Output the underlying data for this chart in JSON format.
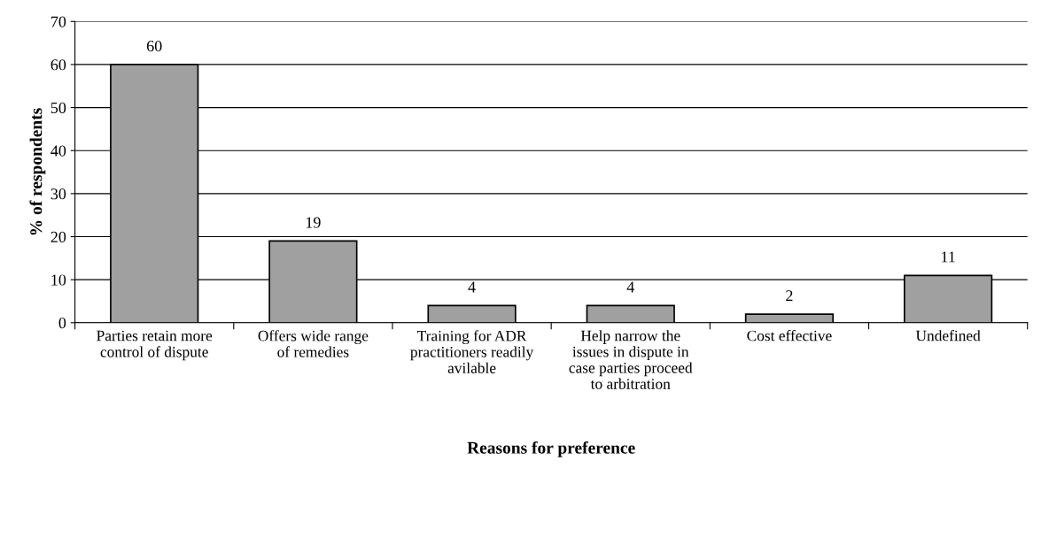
{
  "chart_data": {
    "type": "bar",
    "categories": [
      "Parties retain more\ncontrol of dispute",
      "Offers wide range\nof remedies",
      "Training for ADR\npractitioners readily\navilable",
      "Help narrow the\nissues in dispute in\ncase parties proceed\nto arbitration",
      "Cost effective",
      "Undefined"
    ],
    "values": [
      60,
      19,
      4,
      4,
      2,
      11
    ],
    "color": "#a0a0a0",
    "xlabel": "Reasons for preference",
    "ylabel": "% of respondents",
    "ylim": [
      0,
      70
    ],
    "yticks": [
      0,
      10,
      20,
      30,
      40,
      50,
      60,
      70
    ],
    "grid": "y",
    "data_labels": true
  }
}
